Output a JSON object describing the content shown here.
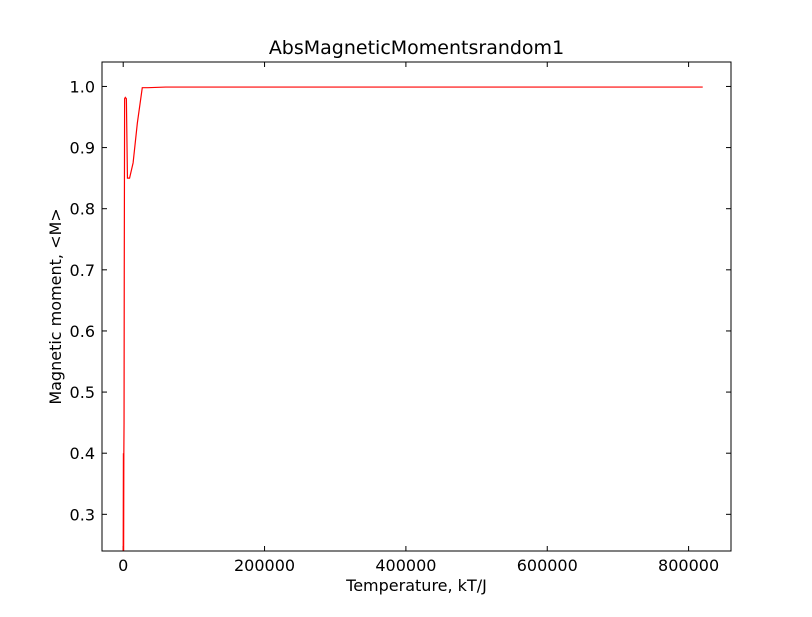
{
  "chart_data": {
    "type": "line",
    "title": "AbsMagneticMomentsrandom1",
    "xlabel": "Temperature, kT/J",
    "ylabel": "Magnetic moment, <M>",
    "xlim": [
      -30000,
      860000
    ],
    "ylim": [
      0.24,
      1.04
    ],
    "xticks": [
      0,
      200000,
      400000,
      600000,
      800000
    ],
    "yticks": [
      0.3,
      0.4,
      0.5,
      0.6,
      0.7,
      0.8,
      0.9,
      1.0
    ],
    "xtick_labels": [
      "0",
      "200000",
      "400000",
      "600000",
      "800000"
    ],
    "ytick_labels": [
      "0.3",
      "0.4",
      "0.5",
      "0.6",
      "0.7",
      "0.8",
      "0.9",
      "1.0"
    ],
    "grid": false,
    "series": [
      {
        "color": "#ff0000",
        "x": [
          0,
          300,
          600,
          900,
          1200,
          1500,
          2000,
          3000,
          4500,
          6000,
          9000,
          14000,
          20000,
          27000,
          35000,
          60000,
          100000,
          200000,
          400000,
          600000,
          820000
        ],
        "y": [
          0.24,
          0.4,
          0.24,
          0.4,
          0.45,
          0.7,
          0.98,
          0.982,
          0.98,
          0.85,
          0.85,
          0.875,
          0.94,
          0.998,
          0.998,
          0.999,
          0.999,
          0.999,
          0.999,
          0.999,
          0.999
        ]
      }
    ]
  }
}
